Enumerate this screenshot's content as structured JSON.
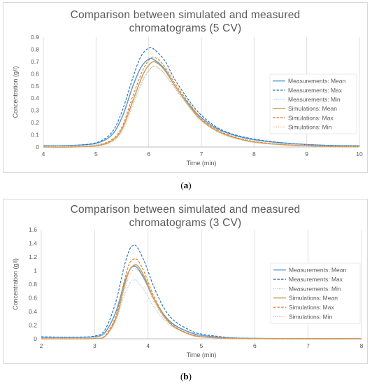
{
  "chart_data": [
    {
      "type": "line",
      "panel_label": "a",
      "title_line1": "Comparison between simulated and measured",
      "title_line2": "chromatograms (5 CV)",
      "xlabel": "Time (min)",
      "ylabel": "Concentration (g/l)",
      "xlim": [
        4,
        10
      ],
      "ylim": [
        0,
        0.9
      ],
      "x_ticks": [
        "4",
        "5",
        "6",
        "7",
        "8",
        "9",
        "10"
      ],
      "y_ticks": [
        "0",
        "0.1",
        "0.2",
        "0.3",
        "0.4",
        "0.5",
        "0.6",
        "0.7",
        "0.8",
        "0.9"
      ],
      "grid": "vertical",
      "legend_position": "right",
      "peak_time": 6.05,
      "series": [
        {
          "name": "Measurements: Mean",
          "color": "#5b9bd5",
          "dash": "solid",
          "x": [
            4.0,
            4.5,
            5.0,
            5.3,
            5.5,
            5.7,
            5.85,
            6.0,
            6.1,
            6.3,
            6.5,
            6.8,
            7.0,
            7.3,
            7.6,
            8.0,
            8.5,
            9.0,
            9.5,
            10.0
          ],
          "y": [
            0.01,
            0.012,
            0.03,
            0.1,
            0.25,
            0.5,
            0.65,
            0.72,
            0.715,
            0.64,
            0.5,
            0.33,
            0.24,
            0.15,
            0.1,
            0.06,
            0.035,
            0.02,
            0.012,
            0.01
          ]
        },
        {
          "name": "Measurements: Max",
          "color": "#2e75b6",
          "dash": "dashed",
          "x": [
            4.0,
            4.5,
            5.0,
            5.3,
            5.5,
            5.7,
            5.85,
            6.0,
            6.1,
            6.3,
            6.5,
            6.8,
            7.0,
            7.3,
            7.6,
            8.0,
            8.5,
            9.0,
            9.5,
            10.0
          ],
          "y": [
            0.01,
            0.012,
            0.035,
            0.12,
            0.3,
            0.57,
            0.74,
            0.81,
            0.8,
            0.71,
            0.55,
            0.36,
            0.26,
            0.16,
            0.105,
            0.065,
            0.036,
            0.02,
            0.012,
            0.01
          ]
        },
        {
          "name": "Measurements: Min",
          "color": "#9dc3e6",
          "dash": "dotted",
          "x": [
            4.0,
            4.5,
            5.0,
            5.3,
            5.5,
            5.7,
            5.9,
            6.05,
            6.15,
            6.3,
            6.5,
            6.8,
            7.0,
            7.3,
            7.6,
            8.0,
            8.5,
            9.0,
            9.5,
            10.0
          ],
          "y": [
            0.01,
            0.01,
            0.02,
            0.06,
            0.16,
            0.36,
            0.55,
            0.65,
            0.655,
            0.6,
            0.48,
            0.31,
            0.22,
            0.14,
            0.09,
            0.055,
            0.03,
            0.018,
            0.011,
            0.008
          ]
        },
        {
          "name": "Simulations: Mean",
          "color": "#c9a15a",
          "dash": "solid",
          "x": [
            4.0,
            4.5,
            5.0,
            5.3,
            5.5,
            5.7,
            5.9,
            6.05,
            6.15,
            6.3,
            6.5,
            6.8,
            7.0,
            7.3,
            7.6,
            8.0,
            8.5,
            9.0,
            9.5,
            10.0
          ],
          "y": [
            0.0,
            0.0,
            0.01,
            0.05,
            0.15,
            0.38,
            0.6,
            0.69,
            0.69,
            0.63,
            0.5,
            0.32,
            0.22,
            0.13,
            0.08,
            0.04,
            0.02,
            0.01,
            0.004,
            0.002
          ]
        },
        {
          "name": "Simulations: Max",
          "color": "#ed7d31",
          "dash": "dashed",
          "x": [
            4.0,
            4.5,
            5.0,
            5.3,
            5.5,
            5.7,
            5.9,
            6.05,
            6.15,
            6.3,
            6.5,
            6.8,
            7.0,
            7.3,
            7.6,
            8.0,
            8.5,
            9.0,
            9.5,
            10.0
          ],
          "y": [
            0.0,
            0.0,
            0.012,
            0.06,
            0.17,
            0.42,
            0.64,
            0.73,
            0.725,
            0.66,
            0.52,
            0.34,
            0.23,
            0.14,
            0.085,
            0.045,
            0.022,
            0.011,
            0.005,
            0.002
          ]
        },
        {
          "name": "Simulations: Min",
          "color": "#e2b779",
          "dash": "dotted",
          "x": [
            4.0,
            4.5,
            5.0,
            5.3,
            5.5,
            5.7,
            5.9,
            6.05,
            6.15,
            6.3,
            6.5,
            6.8,
            7.0,
            7.3,
            7.6,
            8.0,
            8.5,
            9.0,
            9.5,
            10.0
          ],
          "y": [
            0.0,
            0.0,
            0.008,
            0.04,
            0.13,
            0.34,
            0.56,
            0.65,
            0.655,
            0.6,
            0.48,
            0.31,
            0.21,
            0.125,
            0.075,
            0.038,
            0.018,
            0.009,
            0.004,
            0.002
          ]
        }
      ]
    },
    {
      "type": "line",
      "panel_label": "b",
      "title_line1": "Comparison between simulated and measured",
      "title_line2": "chromatograms (3 CV)",
      "xlabel": "Time (min)",
      "ylabel": "Concentration (g/l)",
      "xlim": [
        2,
        8
      ],
      "ylim": [
        0,
        1.6
      ],
      "x_ticks": [
        "2",
        "3",
        "4",
        "5",
        "6",
        "7",
        "8"
      ],
      "y_ticks": [
        "0",
        "0.2",
        "0.4",
        "0.6",
        "0.8",
        "1",
        "1.2",
        "1.4",
        "1.6"
      ],
      "grid": "vertical",
      "legend_position": "right",
      "peak_time": 3.72,
      "series": [
        {
          "name": "Measurements: Mean",
          "color": "#5b9bd5",
          "dash": "solid",
          "x": [
            2.0,
            2.5,
            3.0,
            3.2,
            3.4,
            3.55,
            3.65,
            3.72,
            3.8,
            3.95,
            4.1,
            4.3,
            4.5,
            4.8,
            5.0,
            5.5,
            6.0,
            7.0,
            8.0
          ],
          "y": [
            0.02,
            0.02,
            0.03,
            0.1,
            0.4,
            0.8,
            1.0,
            1.06,
            1.04,
            0.85,
            0.6,
            0.35,
            0.2,
            0.09,
            0.05,
            0.015,
            0.005,
            0.002,
            0.002
          ]
        },
        {
          "name": "Measurements: Max",
          "color": "#2e75b6",
          "dash": "dashed",
          "x": [
            2.0,
            2.5,
            3.0,
            3.2,
            3.4,
            3.55,
            3.65,
            3.72,
            3.8,
            3.95,
            4.1,
            4.3,
            4.5,
            4.8,
            5.0,
            5.5,
            6.0,
            7.0,
            8.0
          ],
          "y": [
            0.03,
            0.025,
            0.04,
            0.14,
            0.55,
            1.05,
            1.3,
            1.37,
            1.34,
            1.1,
            0.78,
            0.45,
            0.26,
            0.12,
            0.07,
            0.02,
            0.006,
            0.002,
            0.002
          ]
        },
        {
          "name": "Measurements: Min",
          "color": "#9dc3e6",
          "dash": "dotted",
          "x": [
            2.0,
            2.5,
            3.0,
            3.2,
            3.4,
            3.55,
            3.65,
            3.72,
            3.8,
            3.95,
            4.1,
            4.3,
            4.5,
            4.8,
            5.0,
            5.5,
            6.0,
            7.0,
            8.0
          ],
          "y": [
            0.015,
            0.015,
            0.025,
            0.08,
            0.3,
            0.62,
            0.8,
            0.86,
            0.84,
            0.68,
            0.48,
            0.28,
            0.16,
            0.07,
            0.04,
            0.012,
            0.004,
            0.001,
            0.001
          ]
        },
        {
          "name": "Simulations: Mean",
          "color": "#c9a15a",
          "dash": "solid",
          "x": [
            2.0,
            2.5,
            3.0,
            3.2,
            3.4,
            3.55,
            3.65,
            3.74,
            3.82,
            3.95,
            4.1,
            4.3,
            4.5,
            4.8,
            5.0,
            5.5,
            6.0,
            7.0,
            8.0
          ],
          "y": [
            0.0,
            0.0,
            0.005,
            0.04,
            0.3,
            0.75,
            1.0,
            1.08,
            1.06,
            0.88,
            0.6,
            0.33,
            0.17,
            0.06,
            0.03,
            0.006,
            0.001,
            0.0,
            0.0
          ]
        },
        {
          "name": "Simulations: Max",
          "color": "#ed7d31",
          "dash": "dashed",
          "x": [
            2.0,
            2.5,
            3.0,
            3.2,
            3.4,
            3.55,
            3.65,
            3.74,
            3.82,
            3.95,
            4.1,
            4.3,
            4.5,
            4.8,
            5.0,
            5.5,
            6.0,
            7.0,
            8.0
          ],
          "y": [
            0.0,
            0.0,
            0.006,
            0.05,
            0.34,
            0.83,
            1.1,
            1.17,
            1.14,
            0.94,
            0.64,
            0.35,
            0.18,
            0.065,
            0.032,
            0.006,
            0.001,
            0.0,
            0.0
          ]
        },
        {
          "name": "Simulations: Min",
          "color": "#e2b779",
          "dash": "dotted",
          "x": [
            2.0,
            2.5,
            3.0,
            3.2,
            3.4,
            3.55,
            3.65,
            3.74,
            3.82,
            3.95,
            4.1,
            4.3,
            4.5,
            4.8,
            5.0,
            5.5,
            6.0,
            7.0,
            8.0
          ],
          "y": [
            0.0,
            0.0,
            0.004,
            0.035,
            0.27,
            0.68,
            0.93,
            1.02,
            1.0,
            0.83,
            0.57,
            0.31,
            0.16,
            0.055,
            0.027,
            0.005,
            0.001,
            0.0,
            0.0
          ]
        }
      ]
    }
  ]
}
